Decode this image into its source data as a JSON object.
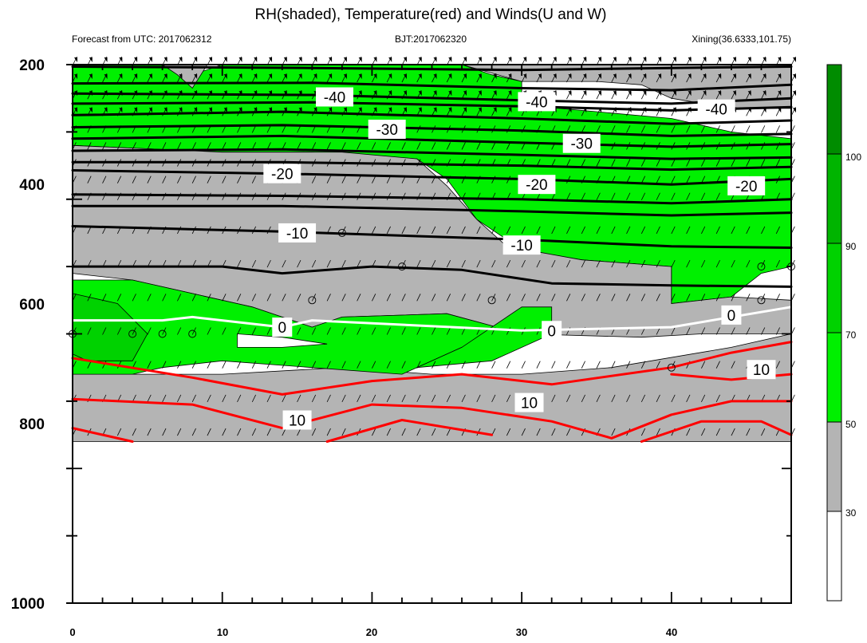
{
  "chart_data": {
    "type": "contour",
    "title": "RH(shaded), Temperature(red) and Winds(U and W)",
    "subtitle_left": "Forecast from UTC: 2017062312",
    "subtitle_center": "BJT:2017062320",
    "subtitle_right": "Xining(36.6333,101.75)",
    "x_ticks": [
      "0",
      "10",
      "20",
      "30",
      "40"
    ],
    "y_ticks": [
      "200",
      "400",
      "600",
      "800",
      "1000"
    ],
    "xlim": [
      0,
      48
    ],
    "ylim": [
      200,
      1000
    ],
    "y_reversed": true,
    "wind_levels": [
      200,
      225,
      250,
      275,
      300,
      325,
      350,
      375,
      400,
      450,
      500,
      550,
      600,
      650,
      700,
      750
    ],
    "rh_colorbar": {
      "labels": [
        "30",
        "50",
        "70",
        "90",
        "100"
      ],
      "colors": [
        "#ffffff",
        "#b4b4b4",
        "#00f000",
        "#00d200",
        "#00b400",
        "#008c00"
      ]
    },
    "rh_regions": [
      {
        "rh": "50-70",
        "color": "#00f000",
        "points": [
          [
            0,
            200
          ],
          [
            6,
            200
          ],
          [
            8,
            215
          ],
          [
            10,
            200
          ],
          [
            26,
            200
          ],
          [
            28,
            215
          ],
          [
            30,
            225
          ],
          [
            30,
            260
          ],
          [
            40,
            280
          ],
          [
            44,
            300
          ],
          [
            48,
            310
          ],
          [
            48,
            500
          ],
          [
            46,
            510
          ],
          [
            44,
            545
          ],
          [
            40,
            555
          ],
          [
            40,
            500
          ],
          [
            34,
            490
          ],
          [
            30,
            475
          ],
          [
            27,
            430
          ],
          [
            25,
            370
          ],
          [
            23,
            340
          ],
          [
            16,
            330
          ],
          [
            10,
            330
          ],
          [
            5,
            325
          ],
          [
            0,
            320
          ]
        ]
      },
      {
        "rh": "30-50",
        "color": "#b4b4b4",
        "points": [
          [
            26,
            200
          ],
          [
            48,
            200
          ],
          [
            48,
            265
          ],
          [
            44,
            265
          ],
          [
            40,
            250
          ],
          [
            38,
            230
          ],
          [
            35,
            225
          ],
          [
            30,
            225
          ]
        ]
      },
      {
        "rh": "30-50",
        "color": "#b4b4b4",
        "points": [
          [
            6,
            200
          ],
          [
            9,
            200
          ],
          [
            8,
            235
          ],
          [
            7,
            215
          ]
        ]
      },
      {
        "rh": "30-50",
        "color": "#b4b4b4",
        "points": [
          [
            0,
            320
          ],
          [
            10,
            330
          ],
          [
            18,
            330
          ],
          [
            23,
            340
          ],
          [
            25,
            380
          ],
          [
            27,
            430
          ],
          [
            29,
            470
          ],
          [
            34,
            490
          ],
          [
            40,
            500
          ],
          [
            40,
            555
          ],
          [
            44,
            545
          ],
          [
            48,
            550
          ],
          [
            48,
            600
          ],
          [
            42,
            600
          ],
          [
            38,
            605
          ],
          [
            30,
            600
          ],
          [
            25,
            570
          ],
          [
            18,
            575
          ],
          [
            16,
            590
          ],
          [
            12,
            560
          ],
          [
            8,
            540
          ],
          [
            4,
            520
          ],
          [
            0,
            510
          ]
        ]
      },
      {
        "rh": "30-50",
        "color": "#b4b4b4",
        "points": [
          [
            0,
            660
          ],
          [
            10,
            660
          ],
          [
            18,
            650
          ],
          [
            24,
            660
          ],
          [
            30,
            660
          ],
          [
            36,
            650
          ],
          [
            44,
            620
          ],
          [
            48,
            600
          ],
          [
            48,
            760
          ],
          [
            0,
            760
          ]
        ]
      },
      {
        "rh": "50-70",
        "color": "#00f000",
        "points": [
          [
            0,
            520
          ],
          [
            4,
            520
          ],
          [
            8,
            540
          ],
          [
            12,
            560
          ],
          [
            16,
            590
          ],
          [
            18,
            575
          ],
          [
            25,
            570
          ],
          [
            30,
            600
          ],
          [
            26,
            620
          ],
          [
            22,
            660
          ],
          [
            16,
            650
          ],
          [
            10,
            640
          ],
          [
            6,
            650
          ],
          [
            4,
            660
          ],
          [
            0,
            660
          ]
        ]
      },
      {
        "rh": "50-70",
        "color": "#00f000",
        "points": [
          [
            23,
            650
          ],
          [
            26,
            620
          ],
          [
            30,
            560
          ],
          [
            32,
            560
          ],
          [
            32,
            600
          ],
          [
            28,
            640
          ]
        ]
      },
      {
        "rh": "70-90",
        "color": "#00d200",
        "points": [
          [
            0,
            540
          ],
          [
            3,
            555
          ],
          [
            5,
            600
          ],
          [
            4,
            640
          ],
          [
            1,
            640
          ],
          [
            0,
            630
          ]
        ]
      },
      {
        "rh": "<30",
        "color": "#ffffff",
        "points": [
          [
            11,
            600
          ],
          [
            11,
            620
          ],
          [
            14,
            620
          ],
          [
            17,
            615
          ],
          [
            14,
            605
          ]
        ]
      }
    ],
    "isotherm_colors": {
      "cold": "#000000",
      "zero": "#ffffff",
      "warm": "#ff0000"
    },
    "isotherms": [
      {
        "temp": -48,
        "points": [
          [
            0,
            203
          ],
          [
            16,
            205
          ],
          [
            30,
            208
          ],
          [
            40,
            205
          ],
          [
            48,
            203
          ]
        ]
      },
      {
        "temp": -46,
        "points": [
          [
            0,
            228
          ],
          [
            16,
            227
          ],
          [
            30,
            235
          ],
          [
            40,
            238
          ],
          [
            48,
            230
          ]
        ]
      },
      {
        "temp": -44,
        "points": [
          [
            0,
            243
          ],
          [
            16,
            245
          ],
          [
            30,
            253
          ],
          [
            40,
            258
          ],
          [
            48,
            250
          ]
        ]
      },
      {
        "temp": -40,
        "points": [
          [
            0,
            258
          ],
          [
            16,
            256
          ],
          [
            30,
            262
          ],
          [
            40,
            268
          ],
          [
            48,
            263
          ]
        ]
      },
      {
        "temp": -36,
        "points": [
          [
            0,
            275
          ],
          [
            14,
            270
          ],
          [
            30,
            280
          ],
          [
            40,
            288
          ],
          [
            48,
            283
          ]
        ]
      },
      {
        "temp": -30,
        "points": [
          [
            0,
            293
          ],
          [
            14,
            290
          ],
          [
            30,
            298
          ],
          [
            40,
            306
          ],
          [
            48,
            303
          ]
        ]
      },
      {
        "temp": -28,
        "points": [
          [
            0,
            310
          ],
          [
            14,
            306
          ],
          [
            30,
            316
          ],
          [
            40,
            322
          ],
          [
            48,
            318
          ]
        ]
      },
      {
        "temp": -24,
        "points": [
          [
            0,
            328
          ],
          [
            14,
            326
          ],
          [
            30,
            334
          ],
          [
            40,
            340
          ],
          [
            48,
            338
          ]
        ]
      },
      {
        "temp": -22,
        "points": [
          [
            0,
            345
          ],
          [
            14,
            345
          ],
          [
            30,
            350
          ],
          [
            40,
            356
          ],
          [
            48,
            352
          ]
        ]
      },
      {
        "temp": -20,
        "points": [
          [
            0,
            357
          ],
          [
            14,
            362
          ],
          [
            30,
            370
          ],
          [
            40,
            378
          ],
          [
            48,
            370
          ]
        ]
      },
      {
        "temp": -16,
        "points": [
          [
            0,
            393
          ],
          [
            14,
            395
          ],
          [
            30,
            400
          ],
          [
            40,
            406
          ],
          [
            48,
            400
          ]
        ]
      },
      {
        "temp": -14,
        "points": [
          [
            0,
            410
          ],
          [
            14,
            410
          ],
          [
            30,
            418
          ],
          [
            40,
            424
          ],
          [
            48,
            420
          ]
        ]
      },
      {
        "temp": -10,
        "points": [
          [
            0,
            440
          ],
          [
            14,
            448
          ],
          [
            30,
            460
          ],
          [
            40,
            470
          ],
          [
            48,
            472
          ]
        ]
      },
      {
        "temp": -8,
        "points": [
          [
            0,
            500
          ],
          [
            10,
            500
          ],
          [
            14,
            510
          ],
          [
            20,
            500
          ],
          [
            26,
            505
          ],
          [
            32,
            525
          ],
          [
            40,
            528
          ],
          [
            48,
            530
          ]
        ]
      },
      {
        "temp": 0,
        "points": [
          [
            0,
            580
          ],
          [
            6,
            580
          ],
          [
            8,
            575
          ],
          [
            14,
            590
          ],
          [
            16,
            580
          ],
          [
            30,
            595
          ],
          [
            40,
            590
          ],
          [
            48,
            560
          ]
        ]
      },
      {
        "temp": 4,
        "points": [
          [
            0,
            636
          ],
          [
            8,
            665
          ],
          [
            14,
            690
          ],
          [
            20,
            670
          ],
          [
            26,
            660
          ],
          [
            32,
            675
          ],
          [
            40,
            650
          ],
          [
            44,
            628
          ],
          [
            48,
            612
          ]
        ]
      },
      {
        "temp": 8,
        "points": [
          [
            40,
            660
          ],
          [
            44,
            668
          ],
          [
            48,
            660
          ]
        ]
      },
      {
        "temp": 10,
        "points": [
          [
            0,
            697
          ],
          [
            8,
            705
          ],
          [
            14,
            740
          ],
          [
            20,
            705
          ],
          [
            26,
            710
          ],
          [
            32,
            730
          ],
          [
            36,
            755
          ],
          [
            40,
            720
          ],
          [
            44,
            700
          ],
          [
            48,
            700
          ]
        ]
      },
      {
        "temp": 12,
        "points": [
          [
            0,
            740
          ],
          [
            4,
            760
          ]
        ]
      },
      {
        "temp": 12,
        "points": [
          [
            17,
            760
          ],
          [
            22,
            728
          ],
          [
            28,
            750
          ]
        ]
      },
      {
        "temp": 12,
        "points": [
          [
            38,
            760
          ],
          [
            42,
            730
          ],
          [
            46,
            730
          ],
          [
            48,
            750
          ]
        ]
      }
    ],
    "contour_labels": [
      {
        "text": "-40",
        "x": 17.5,
        "y": 248
      },
      {
        "text": "-40",
        "x": 31,
        "y": 255
      },
      {
        "text": "-40",
        "x": 43,
        "y": 266
      },
      {
        "text": "-30",
        "x": 21,
        "y": 296
      },
      {
        "text": "-30",
        "x": 34,
        "y": 317
      },
      {
        "text": "-20",
        "x": 14,
        "y": 362
      },
      {
        "text": "-20",
        "x": 31,
        "y": 378
      },
      {
        "text": "-20",
        "x": 45,
        "y": 380
      },
      {
        "text": "-10",
        "x": 15,
        "y": 450
      },
      {
        "text": "-10",
        "x": 30,
        "y": 468
      },
      {
        "text": "0",
        "x": 14,
        "y": 590
      },
      {
        "text": "0",
        "x": 32,
        "y": 595
      },
      {
        "text": "0",
        "x": 44,
        "y": 572
      },
      {
        "text": "10",
        "x": 46,
        "y": 653
      },
      {
        "text": "10",
        "x": 30.5,
        "y": 702
      },
      {
        "text": "10",
        "x": 15,
        "y": 728
      }
    ],
    "calm_markers": [
      [
        0,
        600
      ],
      [
        4,
        600
      ],
      [
        6,
        600
      ],
      [
        8,
        600
      ],
      [
        16,
        550
      ],
      [
        18,
        450
      ],
      [
        22,
        500
      ],
      [
        28,
        550
      ],
      [
        40,
        650
      ],
      [
        46,
        500
      ],
      [
        46,
        550
      ],
      [
        48,
        500
      ]
    ]
  }
}
